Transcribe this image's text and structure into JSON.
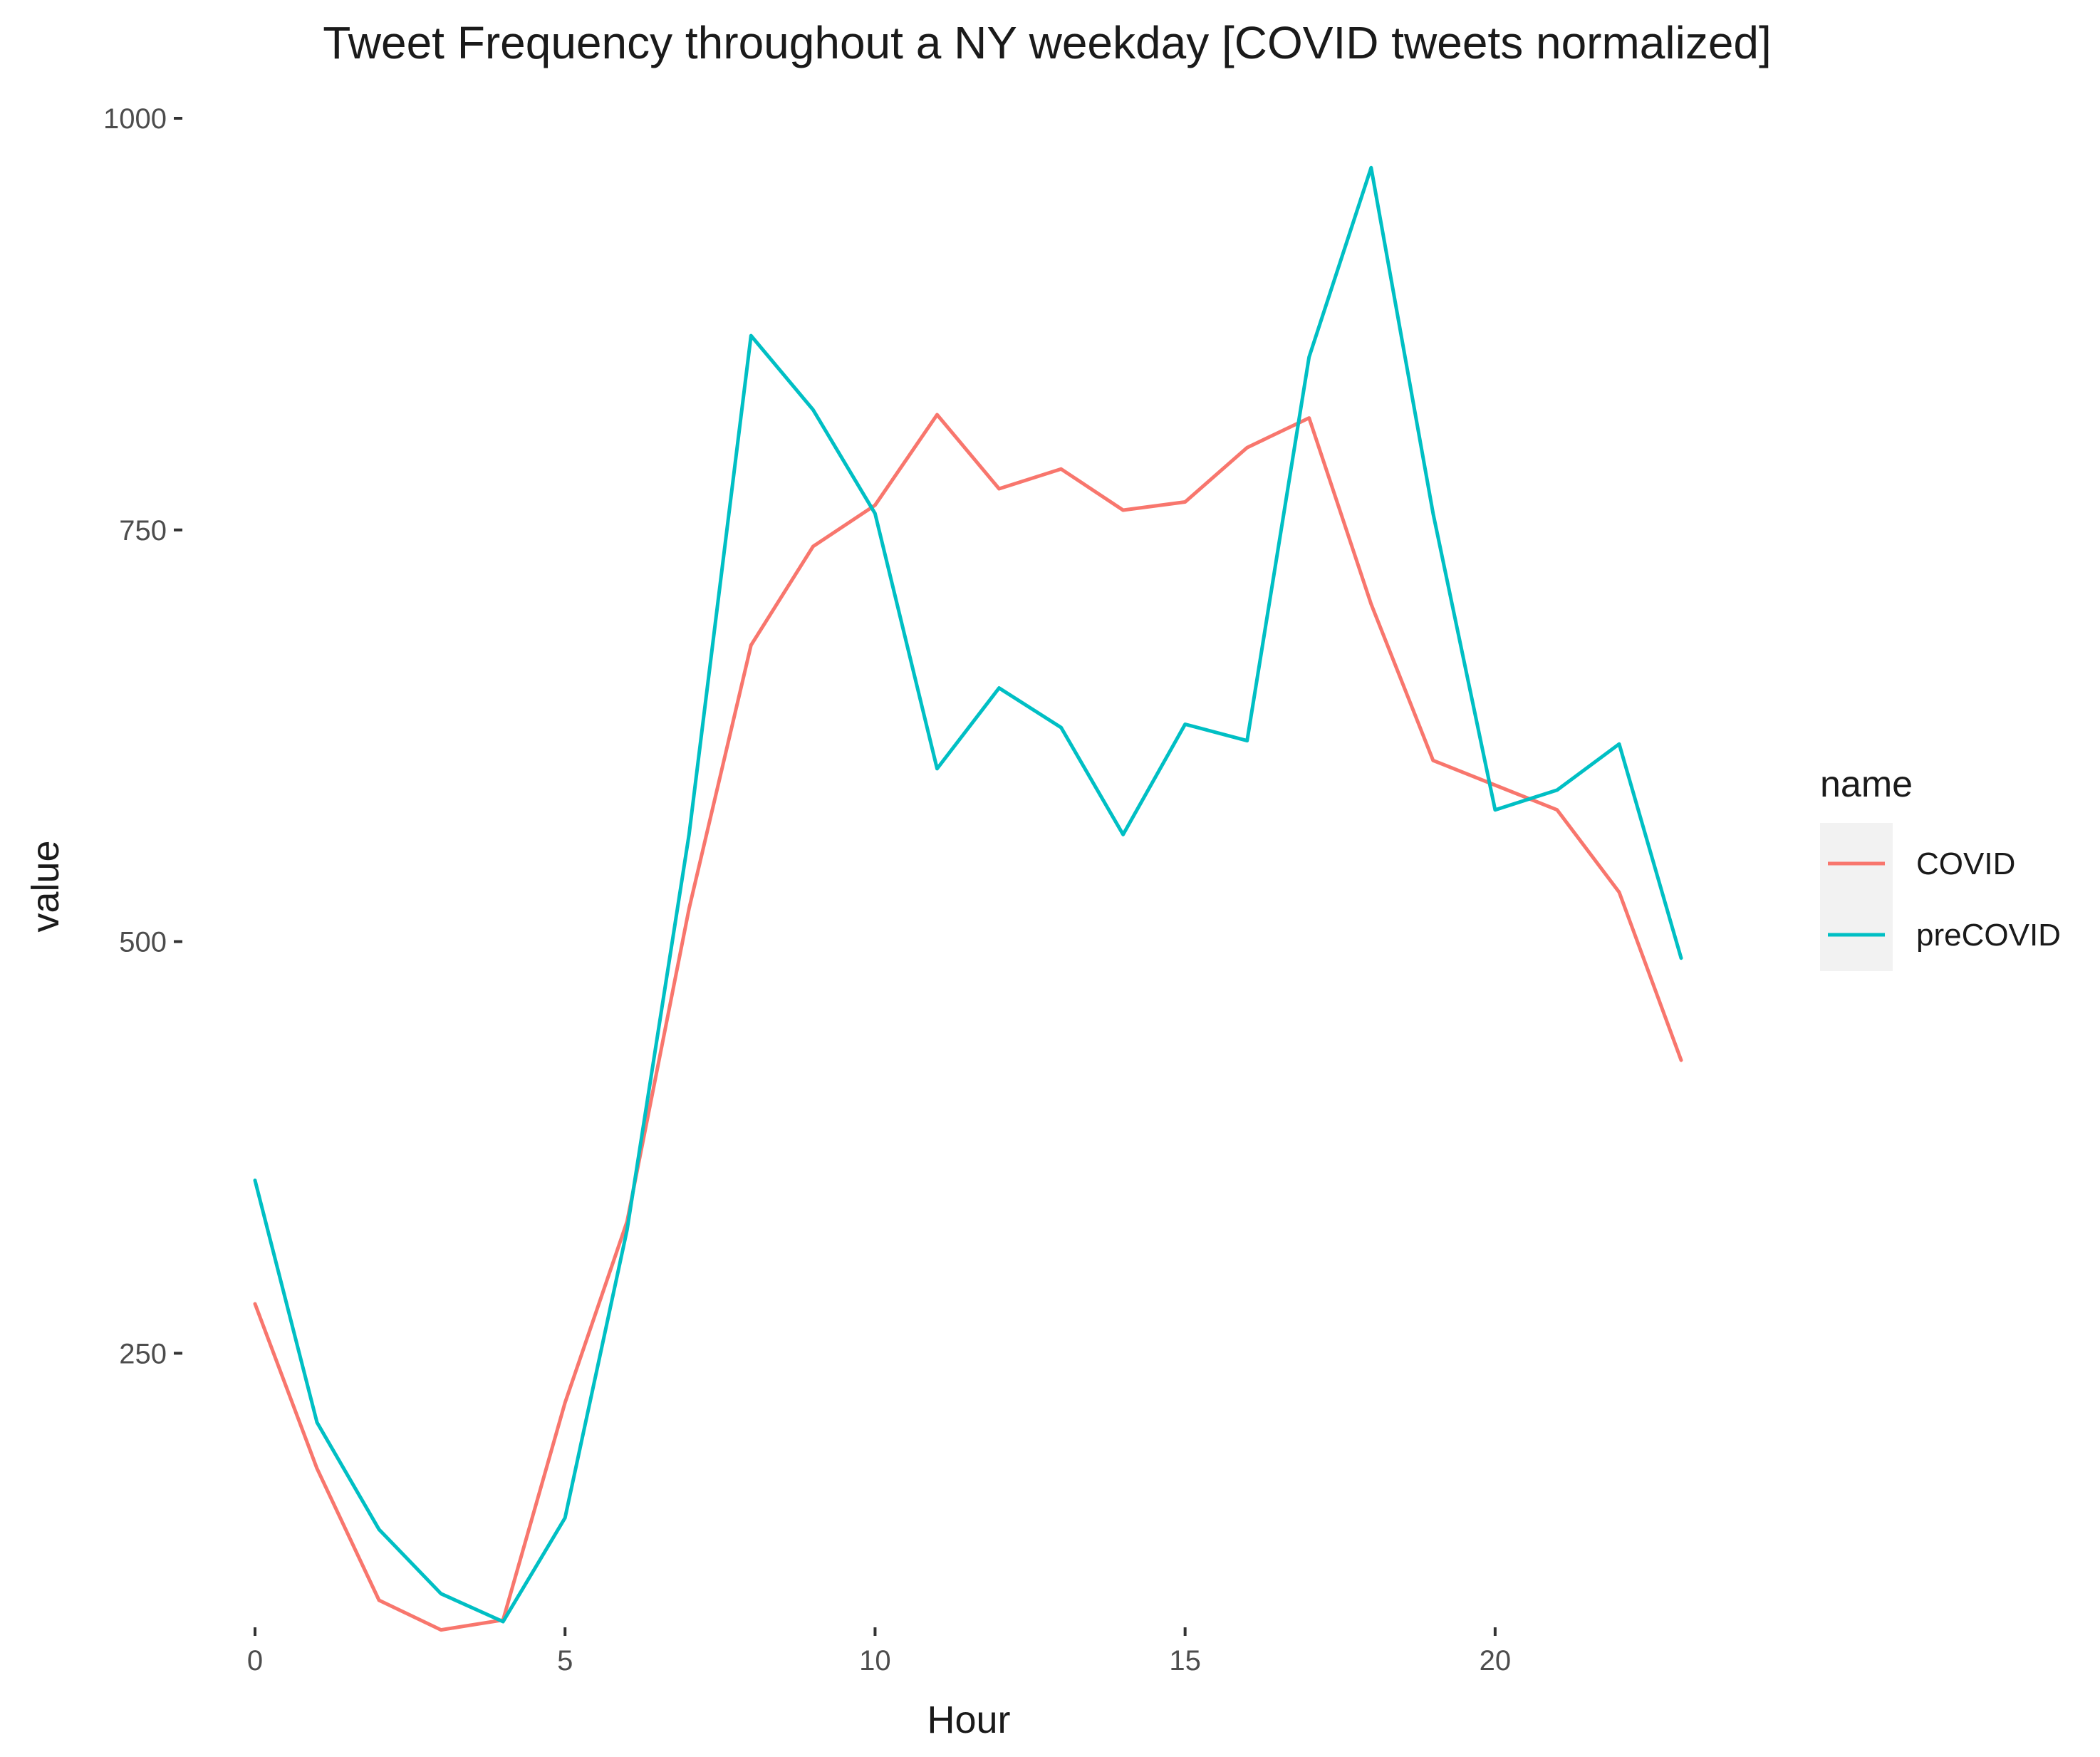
{
  "chart_data": {
    "type": "line",
    "title": "Tweet Frequency throughout a NY weekday [COVID tweets normalized]",
    "xlabel": "Hour",
    "ylabel": "value",
    "xlim": [
      0,
      23
    ],
    "ylim": [
      100,
      1000
    ],
    "x_ticks": [
      0,
      5,
      10,
      15,
      20
    ],
    "y_ticks": [
      250,
      500,
      750,
      1000
    ],
    "grid": false,
    "legend": {
      "title": "name",
      "position": "right"
    },
    "x": [
      0,
      1,
      2,
      3,
      4,
      5,
      6,
      7,
      8,
      9,
      10,
      11,
      12,
      13,
      14,
      15,
      16,
      17,
      18,
      19,
      20,
      21,
      22,
      23
    ],
    "series": [
      {
        "name": "COVID",
        "color": "#F8766D",
        "values": [
          280,
          180,
          100,
          82,
          88,
          220,
          330,
          520,
          680,
          740,
          765,
          820,
          775,
          787,
          762,
          767,
          800,
          818,
          705,
          610,
          595,
          580,
          530,
          428
        ]
      },
      {
        "name": "preCOVID",
        "color": "#00BFC4",
        "values": [
          355,
          208,
          143,
          104,
          87,
          150,
          325,
          565,
          868,
          823,
          760,
          605,
          654,
          630,
          565,
          632,
          622,
          855,
          970,
          760,
          580,
          592,
          620,
          490
        ]
      }
    ]
  }
}
